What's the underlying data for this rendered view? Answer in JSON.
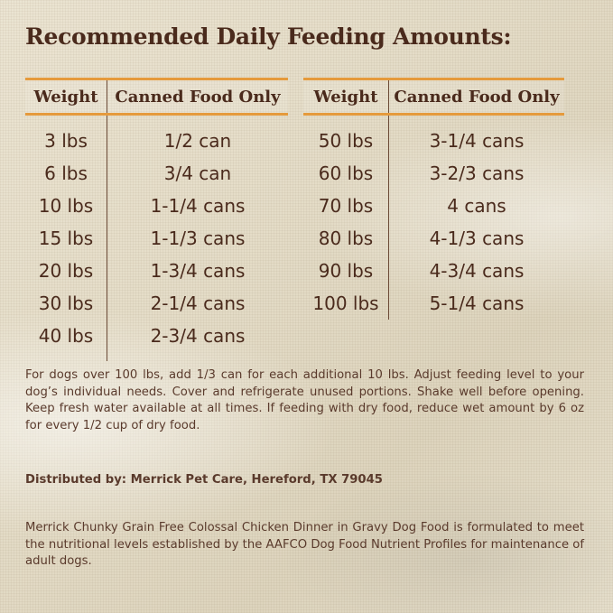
{
  "title": "Recommended Daily Feeding Amounts:",
  "headers": {
    "weight": "Weight",
    "food": "Canned Food Only"
  },
  "left_rows": [
    {
      "weight": "3 lbs",
      "amount": "1/2 can"
    },
    {
      "weight": "6 lbs",
      "amount": "3/4 can"
    },
    {
      "weight": "10 lbs",
      "amount": "1-1/4 cans"
    },
    {
      "weight": "15 lbs",
      "amount": "1-1/3 cans"
    },
    {
      "weight": "20 lbs",
      "amount": "1-3/4 cans"
    },
    {
      "weight": "30 lbs",
      "amount": "2-1/4 cans"
    },
    {
      "weight": "40 lbs",
      "amount": "2-3/4 cans"
    }
  ],
  "right_rows": [
    {
      "weight": "50 lbs",
      "amount": "3-1/4 cans"
    },
    {
      "weight": "60 lbs",
      "amount": "3-2/3 cans"
    },
    {
      "weight": "70 lbs",
      "amount": "4 cans"
    },
    {
      "weight": "80 lbs",
      "amount": "4-1/3 cans"
    },
    {
      "weight": "90 lbs",
      "amount": "4-3/4 cans"
    },
    {
      "weight": "100 lbs",
      "amount": "5-1/4 cans"
    }
  ],
  "notes": "For dogs over 100 lbs, add 1/3 can for each additional 10 lbs. Adjust feeding level to your dog’s individual needs. Cover and refrigerate unused portions. Shake well before opening. Keep fresh water available at all times. If feeding with dry food, reduce wet amount by 6 oz for every 1/2 cup of dry food.",
  "distributor": "Distributed by: Merrick Pet Care, Hereford, TX 79045",
  "formulation": "Merrick Chunky Grain Free Colossal Chicken Dinner in Gravy Dog Food is formulated to meet the nutritional levels established by the AAFCO Dog Food Nutrient Profiles for maintenance of adult dogs.",
  "colors": {
    "text": "#4a2a1c",
    "accent_rule": "#e59a3c"
  }
}
